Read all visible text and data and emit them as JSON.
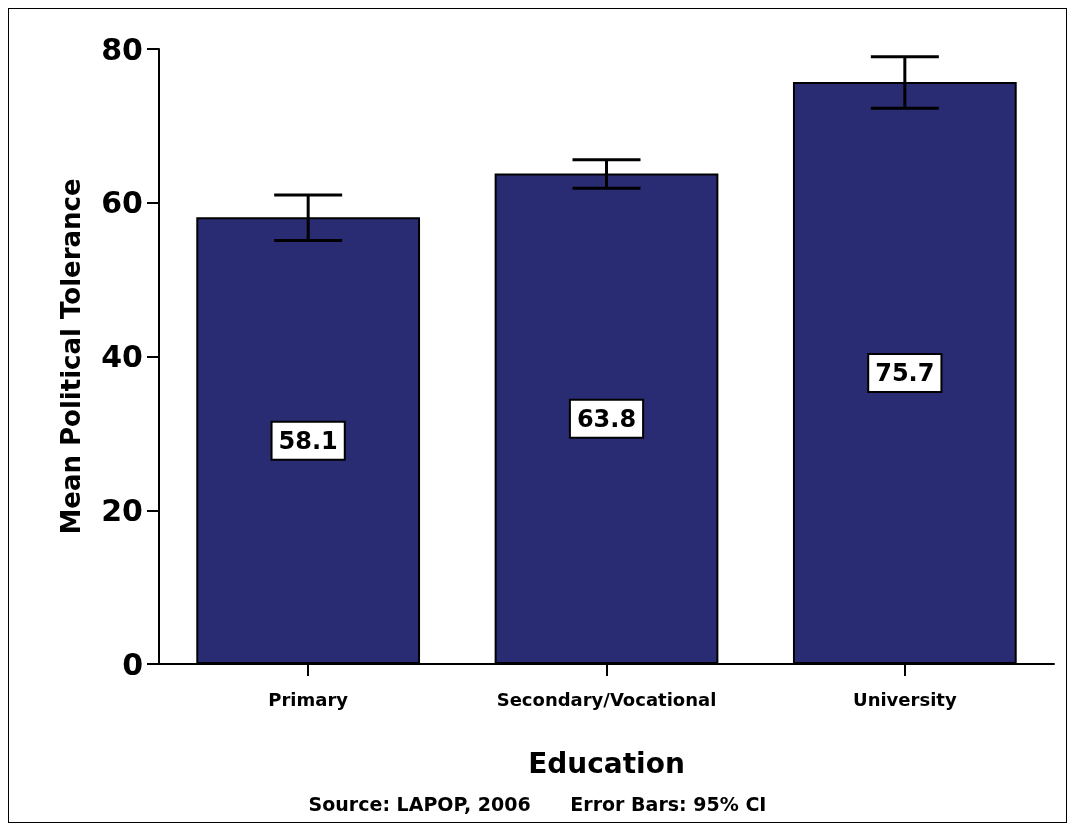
{
  "chart_data": {
    "type": "bar",
    "xlabel": "Education",
    "ylabel": "Mean Political Tolerance",
    "categories": [
      "Primary",
      "Secondary/Vocational",
      "University"
    ],
    "values": [
      58.1,
      63.8,
      75.7
    ],
    "errors": [
      [
        55.1,
        61.0
      ],
      [
        61.9,
        65.6
      ],
      [
        72.3,
        79.0
      ]
    ],
    "color": "#292c72",
    "ylim": [
      0,
      80
    ],
    "yticks": [
      0,
      20,
      40,
      60,
      80
    ],
    "grid": false,
    "data_labels": true,
    "annotations": [
      "Source: LAPOP, 2006      Error Bars: 95% CI"
    ]
  }
}
